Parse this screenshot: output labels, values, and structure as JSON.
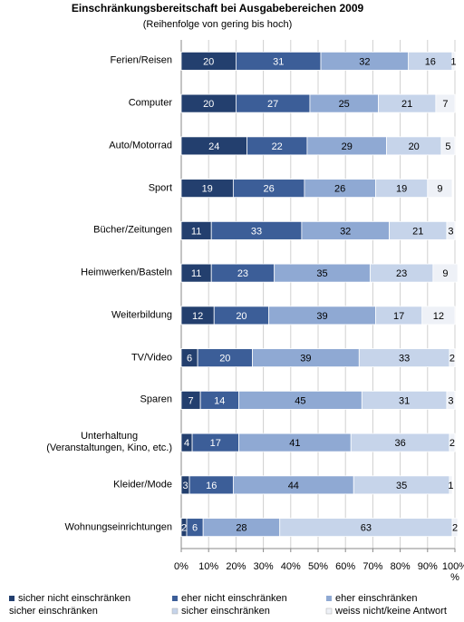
{
  "chart_data": {
    "type": "stacked-barh",
    "title": "Einschränkungsbereitschaft bei Ausgabebereichen 2009",
    "subtitle": "(Reihenfolge von gering bis hoch)",
    "categories": [
      "Ferien/Reisen",
      "Computer",
      "Auto/Motorrad",
      "Sport",
      "Bücher/Zeitungen",
      "Heimwerken/Basteln",
      "Weiterbildung",
      "TV/Video",
      "Sparen",
      "Unterhaltung\n(Veranstaltungen, Kino, etc.)",
      "Kleider/Mode",
      "Wohnungseinrichtungen"
    ],
    "series": [
      {
        "name": "sicher nicht einschränken",
        "color": "#233f6e",
        "values": [
          20,
          20,
          24,
          19,
          11,
          11,
          12,
          6,
          7,
          4,
          3,
          2
        ]
      },
      {
        "name": "eher nicht einschränken",
        "color": "#3c5e98",
        "values": [
          31,
          27,
          22,
          26,
          33,
          23,
          20,
          20,
          14,
          17,
          16,
          6
        ]
      },
      {
        "name": "eher einschränken",
        "color": "#8fa9d3",
        "values": [
          32,
          25,
          29,
          26,
          32,
          35,
          39,
          39,
          45,
          41,
          44,
          28
        ]
      },
      {
        "name": "sicher einschränken",
        "color": "#c6d4ea",
        "values": [
          16,
          21,
          20,
          19,
          21,
          23,
          17,
          33,
          31,
          36,
          35,
          63
        ]
      },
      {
        "name": "weiss nicht/keine Antwort",
        "color": "#eef1f7",
        "values": [
          1,
          7,
          5,
          9,
          3,
          9,
          12,
          2,
          3,
          2,
          1,
          2
        ]
      }
    ],
    "legend_extra_text": "sicher einschränken",
    "xlim": [
      0,
      100
    ],
    "xticks": [
      {
        "value": 0,
        "label": "0%"
      },
      {
        "value": 10,
        "label": "10%"
      },
      {
        "value": 20,
        "label": "20%"
      },
      {
        "value": 30,
        "label": "30%"
      },
      {
        "value": 40,
        "label": "40%"
      },
      {
        "value": 50,
        "label": "50%"
      },
      {
        "value": 60,
        "label": "60%"
      },
      {
        "value": 70,
        "label": "70%"
      },
      {
        "value": 80,
        "label": "80%"
      },
      {
        "value": 90,
        "label": "90%"
      },
      {
        "value": 100,
        "label": "100%"
      }
    ],
    "xlabel": "%",
    "grid": true
  }
}
